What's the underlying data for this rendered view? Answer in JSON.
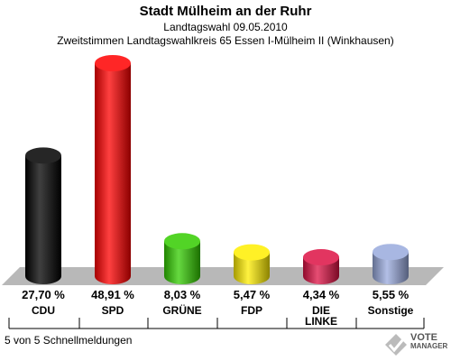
{
  "header": {
    "title": "Stadt Mülheim an der Ruhr",
    "subtitle": "Landtagswahl 09.05.2010",
    "subtitle2": "Zweitstimmen Landtagswahlkreis 65  Essen I-Mülheim II (Winkhausen)"
  },
  "footer": {
    "text": "5 von 5 Schnellmeldungen"
  },
  "logo": {
    "line1": "VOTE",
    "line2": "MANAGER"
  },
  "chart_data": {
    "type": "bar",
    "title": "Stadt Mülheim an der Ruhr",
    "categories": [
      "CDU",
      "SPD",
      "GRÜNE",
      "FDP",
      "DIE LINKE",
      "Sonstige"
    ],
    "category_lines": [
      [
        "CDU"
      ],
      [
        "SPD"
      ],
      [
        "GRÜNE"
      ],
      [
        "FDP"
      ],
      [
        "DIE",
        "LINKE"
      ],
      [
        "Sonstige"
      ]
    ],
    "values": [
      27.7,
      48.91,
      8.03,
      5.47,
      4.34,
      5.55
    ],
    "value_labels": [
      "27,70 %",
      "48,91 %",
      "8,03 %",
      "5,47 %",
      "4,34 %",
      "5,55 %"
    ],
    "colors": [
      "#000000",
      "#ff0000",
      "#33cc00",
      "#ffee00",
      "#dd1144",
      "#99aadd"
    ],
    "ylim": [
      0,
      48.91
    ],
    "style": "3d-cylinder"
  }
}
